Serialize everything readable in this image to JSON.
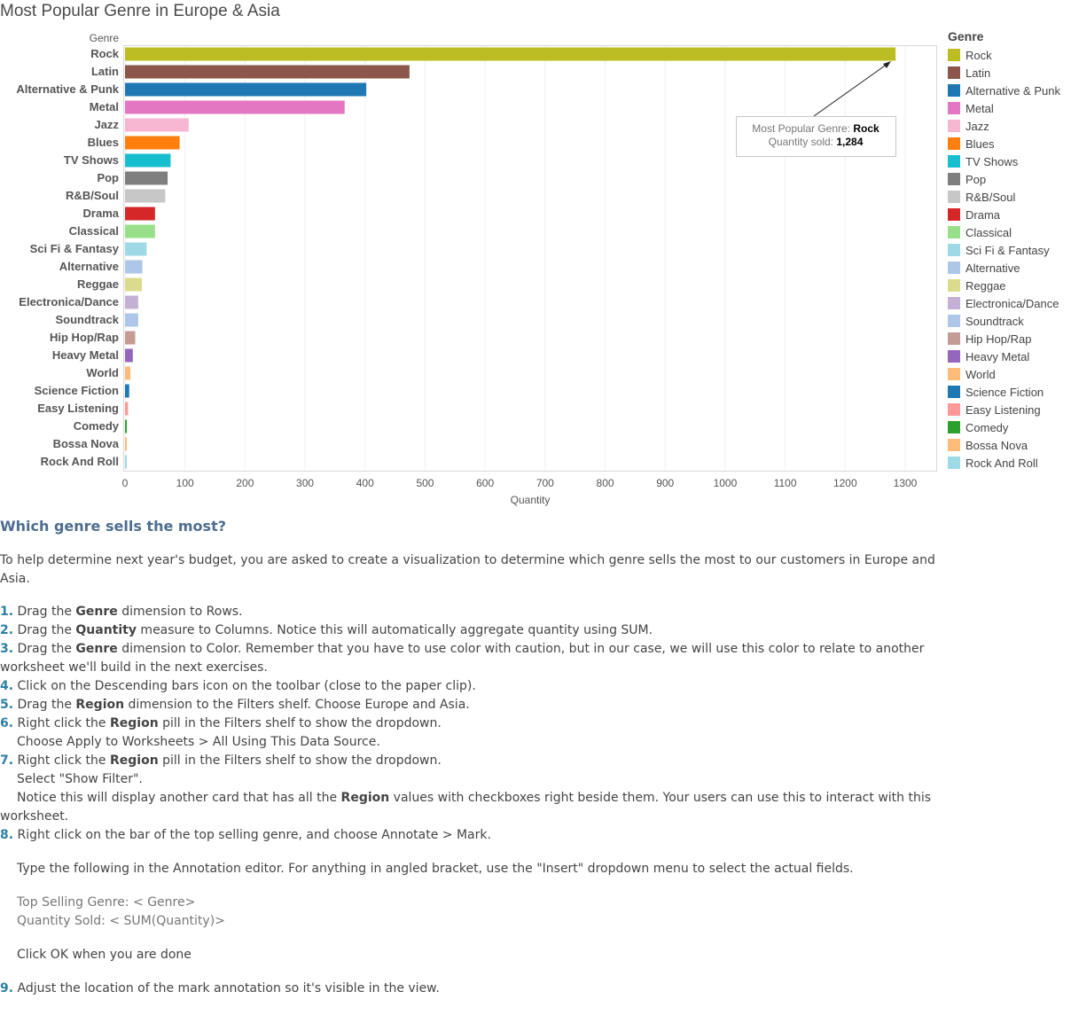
{
  "title": "Most Popular Genre in Europe & Asia",
  "chart_data": {
    "type": "bar",
    "orientation": "horizontal",
    "row_header": "Genre",
    "xlabel": "Quantity",
    "xlim": [
      0,
      1300
    ],
    "xticks": [
      0,
      100,
      200,
      300,
      400,
      500,
      600,
      700,
      800,
      900,
      1000,
      1100,
      1200,
      1300
    ],
    "categories": [
      "Rock",
      "Latin",
      "Alternative & Punk",
      "Metal",
      "Jazz",
      "Blues",
      "TV Shows",
      "Pop",
      "R&B/Soul",
      "Drama",
      "Classical",
      "Sci Fi & Fantasy",
      "Alternative",
      "Reggae",
      "Electronica/Dance",
      "Soundtrack",
      "Hip Hop/Rap",
      "Heavy Metal",
      "World",
      "Science Fiction",
      "Easy Listening",
      "Comedy",
      "Bossa Nova",
      "Rock And Roll"
    ],
    "values": [
      1284,
      474,
      402,
      366,
      106,
      91,
      76,
      71,
      67,
      50,
      50,
      36,
      29,
      28,
      22,
      22,
      17,
      13,
      9,
      7,
      5,
      3,
      3,
      3
    ],
    "colors": [
      "#bcbd22",
      "#8c564b",
      "#1f77b4",
      "#e377c2",
      "#f7b6d2",
      "#ff7f0e",
      "#17becf",
      "#7f7f7f",
      "#c7c7c7",
      "#d62728",
      "#98df8a",
      "#9edae5",
      "#aec7e8",
      "#dbdb8d",
      "#c5b0d5",
      "#aec7e8",
      "#c49c94",
      "#9467bd",
      "#ffbb78",
      "#1f77b4",
      "#ff9896",
      "#2ca02c",
      "#ffbb78",
      "#9edae5"
    ],
    "annotation": {
      "label1": "Most Popular Genre: ",
      "value1": "Rock",
      "label2": "Quantity sold: ",
      "value2": "1,284"
    },
    "legend": {
      "title": "Genre",
      "position": "right"
    }
  },
  "description": {
    "heading": "Which genre sells the most?",
    "intro": "To help determine next year's budget, you are asked to create a visualization to determine which genre sells the most to our customers in Europe and Asia.",
    "s1_num": "1.",
    "s1_a": " Drag the ",
    "s1_b": "Genre",
    "s1_c": " dimension to Rows.",
    "s2_num": "2.",
    "s2_a": " Drag the ",
    "s2_b": "Quantity",
    "s2_c": " measure to Columns. Notice this will automatically aggregate quantity using SUM.",
    "s3_num": "3.",
    "s3_a": " Drag the ",
    "s3_b": "Genre",
    "s3_c": " dimension to Color. Remember that you have to use color with caution, but in our case, we will use this color to relate to another worksheet we'll build in the next exercises.",
    "s4_num": "4.",
    "s4_a": " Click on the Descending bars icon on the toolbar (close to the paper clip).",
    "s5_num": "5.",
    "s5_a": " Drag the ",
    "s5_b": "Region",
    "s5_c": " dimension to the Filters shelf. Choose Europe and Asia.",
    "s6_num": "6.",
    "s6_a": " Right click the ",
    "s6_b": "Region",
    "s6_c": " pill in the Filters shelf to show the dropdown.",
    "s6_sub": "Choose Apply to Worksheets > All Using This Data Source.",
    "s7_num": "7.",
    "s7_a": " Right click the ",
    "s7_b": "Region",
    "s7_c": " pill in the Filters shelf to show the dropdown.",
    "s7_sub1": "Select \"Show Filter\".",
    "s7_sub2_a": "Notice this will display another card that has all the ",
    "s7_sub2_b": "Region",
    "s7_sub2_c": " values with checkboxes right beside them. Your users can use this to interact with this worksheet.",
    "s8_num": "8.",
    "s8_a": " Right click on the bar of the top selling genre, and choose Annotate > Mark.",
    "s8_sub1": "Type the following in the Annotation editor. For anything in angled bracket, use the \"Insert\" dropdown menu to select the actual fields.",
    "s8_sub2": "Top Selling Genre: < Genre>",
    "s8_sub3": "Quantity Sold: < SUM(Quantity)>",
    "s8_sub4": "Click OK when you are done",
    "s9_num": "9.",
    "s9_a": " Adjust the location of the mark annotation so it's visible in the view."
  }
}
